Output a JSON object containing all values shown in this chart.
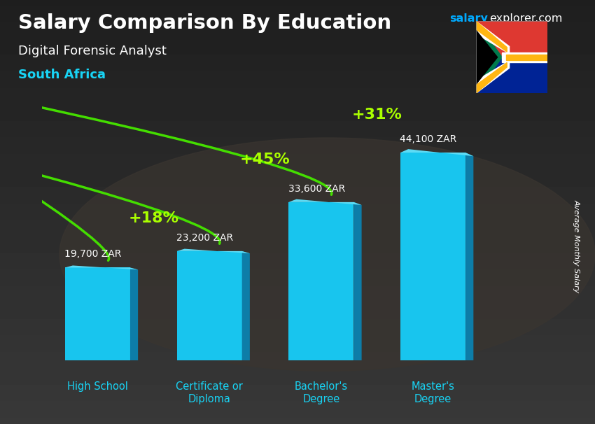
{
  "title": "Salary Comparison By Education",
  "subtitle": "Digital Forensic Analyst",
  "country": "South Africa",
  "categories": [
    "High School",
    "Certificate or\nDiploma",
    "Bachelor's\nDegree",
    "Master's\nDegree"
  ],
  "values": [
    19700,
    23200,
    33600,
    44100
  ],
  "value_labels": [
    "19,700 ZAR",
    "23,200 ZAR",
    "33,600 ZAR",
    "44,100 ZAR"
  ],
  "pct_changes": [
    "+18%",
    "+45%",
    "+31%"
  ],
  "bar_color_face": "#18c5ee",
  "bar_color_side": "#0d7da8",
  "bar_color_top": "#5ddbf5",
  "bg_color": "#2a2a2a",
  "title_color": "#ffffff",
  "subtitle_color": "#e0e0e0",
  "country_color": "#00cfff",
  "value_color": "#ffffff",
  "pct_color": "#aaff00",
  "arrow_color": "#44dd00",
  "ylabel": "Average Monthly Salary",
  "brand_color_salary": "#00aaff",
  "brand_color_explorer": "#ffffff",
  "ylim_max": 54000,
  "bar_positions": [
    0.5,
    1.7,
    2.9,
    4.1
  ],
  "bar_width": 0.7,
  "xlim": [
    -0.1,
    5.2
  ]
}
